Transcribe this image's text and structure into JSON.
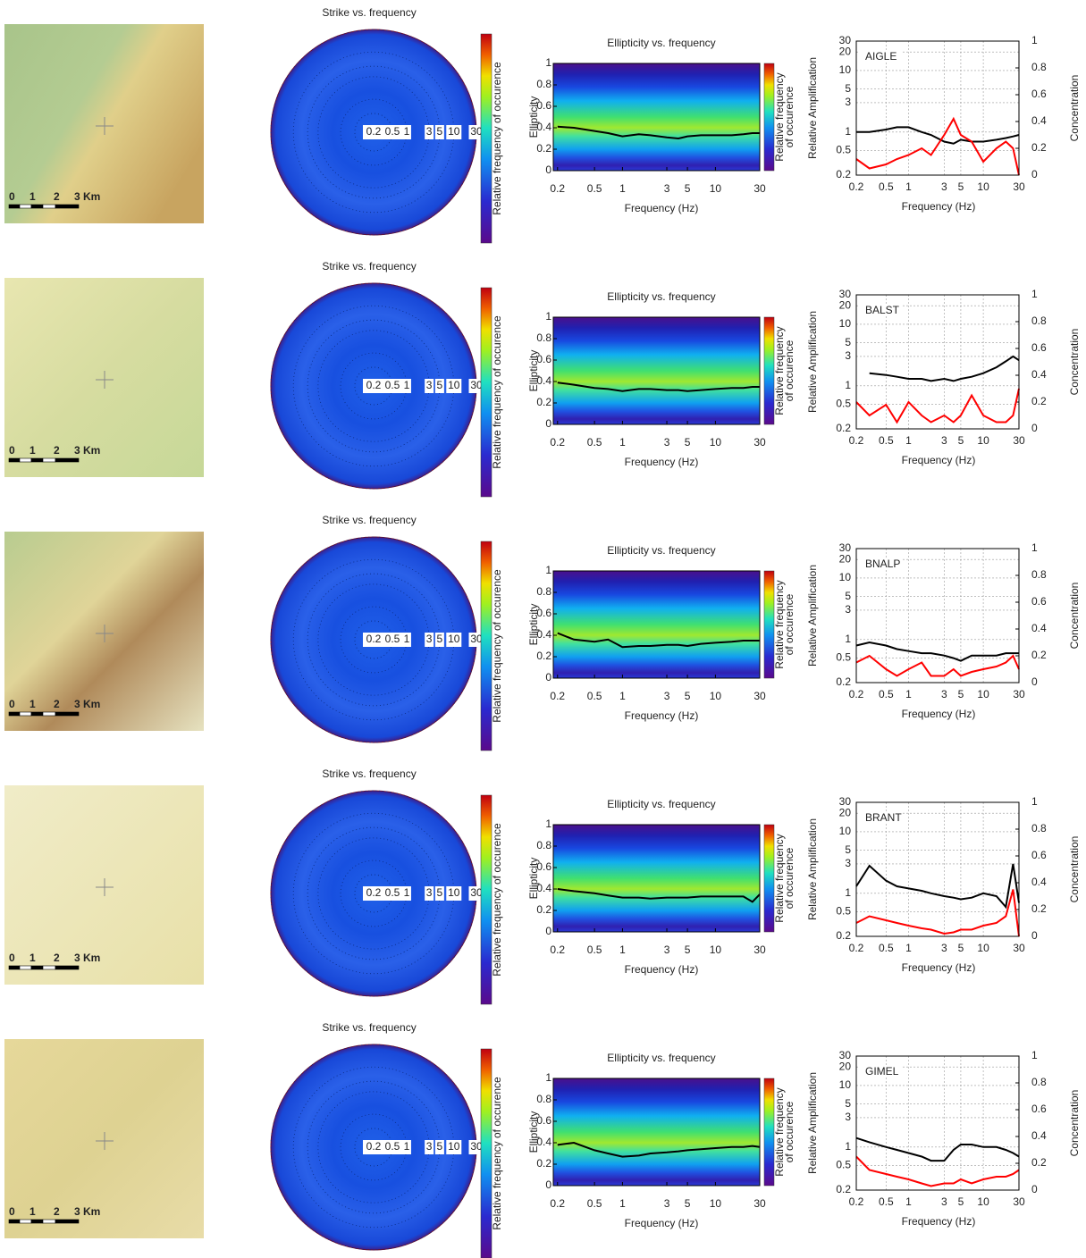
{
  "maps": [
    {
      "scale_labels": [
        "0",
        "1",
        "2",
        "3 Km"
      ]
    },
    {
      "scale_labels": [
        "0",
        "1",
        "2",
        "3 Km"
      ]
    },
    {
      "scale_labels": [
        "0",
        "1",
        "2",
        "3 Km"
      ]
    },
    {
      "scale_labels": [
        "0",
        "1",
        "2",
        "3 Km"
      ]
    },
    {
      "scale_labels": [
        "0",
        "1",
        "2",
        "3 Km"
      ]
    }
  ],
  "chart_data": [
    {
      "type": "polar",
      "title": "Strike vs. frequency",
      "rlim": [
        0.2,
        30
      ],
      "rticks": [
        0.2,
        0.5,
        1,
        3,
        5,
        10,
        30
      ],
      "colorbar_label": "Relative frequency of occurence"
    },
    {
      "type": "heatmap",
      "title": "Ellipticity vs. frequency",
      "x_label": "Frequency (Hz)",
      "y_label": "Ellipticity",
      "colorbar_label": [
        "Relative frequency",
        "of occurence"
      ],
      "xlog": true,
      "xlim": [
        0.18,
        30
      ],
      "xticks": [
        0.2,
        0.5,
        1,
        3,
        5,
        10,
        30
      ],
      "ylim": [
        0,
        1
      ],
      "yticks": [
        0,
        0.2,
        0.4,
        0.6,
        0.8,
        1
      ],
      "x": [
        0.2,
        0.3,
        0.5,
        0.7,
        1,
        1.5,
        2,
        3,
        4,
        5,
        7,
        10,
        15,
        20,
        25,
        30
      ],
      "series": [
        {
          "color": "#000000",
          "values": [
            0.41,
            0.4,
            0.37,
            0.35,
            0.32,
            0.34,
            0.33,
            0.31,
            0.3,
            0.32,
            0.33,
            0.33,
            0.33,
            0.34,
            0.35,
            0.35
          ]
        }
      ]
    },
    {
      "type": "line",
      "annotation": "AIGLE",
      "x_label": "Frequency (Hz)",
      "y_label": "Relative Amplification",
      "y2_label": "Concentration",
      "xlog": true,
      "ylog": true,
      "grid": true,
      "xlim": [
        0.2,
        30
      ],
      "xticks": [
        0.2,
        0.5,
        1,
        3,
        5,
        10,
        30
      ],
      "ylim": [
        0.2,
        30
      ],
      "yticks": [
        0.2,
        0.5,
        1,
        3,
        5,
        10,
        20,
        30
      ],
      "y2lim": [
        0,
        1
      ],
      "y2ticks": [
        0,
        0.2,
        0.4,
        0.6,
        0.8,
        1
      ],
      "x": [
        0.2,
        0.3,
        0.5,
        0.7,
        1,
        1.5,
        2,
        3,
        4,
        5,
        7,
        10,
        15,
        20,
        25,
        30
      ],
      "series": [
        {
          "color": "#000000",
          "values": [
            1.0,
            1.0,
            1.1,
            1.2,
            1.2,
            1.0,
            0.9,
            0.7,
            0.65,
            0.75,
            0.7,
            0.7,
            0.75,
            0.8,
            0.85,
            0.9
          ]
        },
        {
          "color": "#ff0000",
          "axis": "y2",
          "values": [
            0.12,
            0.05,
            0.08,
            0.12,
            0.15,
            0.2,
            0.15,
            0.3,
            0.42,
            0.3,
            0.25,
            0.1,
            0.2,
            0.25,
            0.2,
            0
          ]
        }
      ]
    },
    {
      "type": "polar",
      "title": "Strike vs. frequency",
      "rlim": [
        0.2,
        30
      ],
      "rticks": [
        0.2,
        0.5,
        1,
        3,
        5,
        10,
        30
      ],
      "colorbar_label": "Relative frequency of occurence"
    },
    {
      "type": "heatmap",
      "title": "Ellipticity vs. frequency",
      "x_label": "Frequency (Hz)",
      "y_label": "Ellipticity",
      "colorbar_label": [
        "Relative frequency",
        "of occurence"
      ],
      "xlog": true,
      "xlim": [
        0.18,
        30
      ],
      "xticks": [
        0.2,
        0.5,
        1,
        3,
        5,
        10,
        30
      ],
      "ylim": [
        0,
        1
      ],
      "yticks": [
        0,
        0.2,
        0.4,
        0.6,
        0.8,
        1
      ],
      "x": [
        0.2,
        0.3,
        0.5,
        0.7,
        1,
        1.5,
        2,
        3,
        4,
        5,
        7,
        10,
        15,
        20,
        25,
        30
      ],
      "series": [
        {
          "color": "#000000",
          "values": [
            0.39,
            0.37,
            0.34,
            0.33,
            0.31,
            0.33,
            0.33,
            0.32,
            0.32,
            0.31,
            0.32,
            0.33,
            0.34,
            0.34,
            0.35,
            0.35
          ]
        }
      ]
    },
    {
      "type": "line",
      "annotation": "BALST",
      "x_label": "Frequency (Hz)",
      "y_label": "Relative Amplification",
      "y2_label": "Concentration",
      "xlog": true,
      "ylog": true,
      "grid": true,
      "xlim": [
        0.2,
        30
      ],
      "xticks": [
        0.2,
        0.5,
        1,
        3,
        5,
        10,
        30
      ],
      "ylim": [
        0.2,
        30
      ],
      "yticks": [
        0.2,
        0.5,
        1,
        3,
        5,
        10,
        20,
        30
      ],
      "y2lim": [
        0,
        1
      ],
      "y2ticks": [
        0,
        0.2,
        0.4,
        0.6,
        0.8,
        1
      ],
      "x": [
        0.2,
        0.3,
        0.5,
        0.7,
        1,
        1.5,
        2,
        3,
        4,
        5,
        7,
        10,
        15,
        20,
        25,
        30
      ],
      "series": [
        {
          "color": "#000000",
          "values": [
            null,
            1.6,
            1.5,
            1.4,
            1.3,
            1.3,
            1.2,
            1.3,
            1.2,
            1.3,
            1.4,
            1.6,
            2.0,
            2.5,
            3.0,
            2.6
          ]
        },
        {
          "color": "#ff0000",
          "axis": "y2",
          "values": [
            0.2,
            0.1,
            0.18,
            0.05,
            0.2,
            0.1,
            0.05,
            0.1,
            0.05,
            0.1,
            0.25,
            0.1,
            0.05,
            0.05,
            0.1,
            0.3
          ]
        }
      ]
    },
    {
      "type": "polar",
      "title": "Strike vs. frequency",
      "rlim": [
        0.2,
        30
      ],
      "rticks": [
        0.2,
        0.5,
        1,
        3,
        5,
        10,
        30
      ],
      "colorbar_label": "Relative frequency of occurence"
    },
    {
      "type": "heatmap",
      "title": "Ellipticity vs. frequency",
      "x_label": "Frequency (Hz)",
      "y_label": "Ellipticity",
      "colorbar_label": [
        "Relative frequency",
        "of occurence"
      ],
      "xlog": true,
      "xlim": [
        0.18,
        30
      ],
      "xticks": [
        0.2,
        0.5,
        1,
        3,
        5,
        10,
        30
      ],
      "ylim": [
        0,
        1
      ],
      "yticks": [
        0,
        0.2,
        0.4,
        0.6,
        0.8,
        1
      ],
      "x": [
        0.2,
        0.3,
        0.5,
        0.7,
        1,
        1.5,
        2,
        3,
        4,
        5,
        7,
        10,
        15,
        20,
        25,
        30
      ],
      "series": [
        {
          "color": "#000000",
          "values": [
            0.42,
            0.36,
            0.34,
            0.36,
            0.29,
            0.3,
            0.3,
            0.31,
            0.31,
            0.3,
            0.32,
            0.33,
            0.34,
            0.35,
            0.35,
            0.35
          ]
        }
      ]
    },
    {
      "type": "line",
      "annotation": "BNALP",
      "x_label": "Frequency (Hz)",
      "y_label": "Relative Amplification",
      "y2_label": "Concentration",
      "xlog": true,
      "ylog": true,
      "grid": true,
      "xlim": [
        0.2,
        30
      ],
      "xticks": [
        0.2,
        0.5,
        1,
        3,
        5,
        10,
        30
      ],
      "ylim": [
        0.2,
        30
      ],
      "yticks": [
        0.2,
        0.5,
        1,
        3,
        5,
        10,
        20,
        30
      ],
      "y2lim": [
        0,
        1
      ],
      "y2ticks": [
        0,
        0.2,
        0.4,
        0.6,
        0.8,
        1
      ],
      "x": [
        0.2,
        0.3,
        0.5,
        0.7,
        1,
        1.5,
        2,
        3,
        4,
        5,
        7,
        10,
        15,
        20,
        25,
        30
      ],
      "series": [
        {
          "color": "#000000",
          "values": [
            0.8,
            0.9,
            0.8,
            0.7,
            0.65,
            0.6,
            0.6,
            0.55,
            0.5,
            0.45,
            0.55,
            0.55,
            0.55,
            0.6,
            0.6,
            0.6
          ]
        },
        {
          "color": "#ff0000",
          "axis": "y2",
          "values": [
            0.15,
            0.2,
            0.1,
            0.05,
            0.1,
            0.15,
            0.05,
            0.05,
            0.1,
            0.05,
            0.08,
            0.1,
            0.12,
            0.15,
            0.2,
            0.1
          ]
        }
      ]
    },
    {
      "type": "polar",
      "title": "Strike vs. frequency",
      "rlim": [
        0.2,
        30
      ],
      "rticks": [
        0.2,
        0.5,
        1,
        3,
        5,
        10,
        30
      ],
      "colorbar_label": "Relative frequency of occurence"
    },
    {
      "type": "heatmap",
      "title": "Ellipticity vs. frequency",
      "x_label": "Frequency (Hz)",
      "y_label": "Ellipticity",
      "colorbar_label": [
        "Relative frequency",
        "of occurence"
      ],
      "xlog": true,
      "xlim": [
        0.18,
        30
      ],
      "xticks": [
        0.2,
        0.5,
        1,
        3,
        5,
        10,
        30
      ],
      "ylim": [
        0,
        1
      ],
      "yticks": [
        0,
        0.2,
        0.4,
        0.6,
        0.8,
        1
      ],
      "x": [
        0.2,
        0.3,
        0.5,
        0.7,
        1,
        1.5,
        2,
        3,
        4,
        5,
        7,
        10,
        15,
        20,
        25,
        30
      ],
      "series": [
        {
          "color": "#000000",
          "values": [
            0.4,
            0.38,
            0.36,
            0.34,
            0.32,
            0.32,
            0.31,
            0.32,
            0.32,
            0.32,
            0.33,
            0.33,
            0.33,
            0.33,
            0.28,
            0.35
          ]
        }
      ]
    },
    {
      "type": "line",
      "annotation": "BRANT",
      "x_label": "Frequency (Hz)",
      "y_label": "Relative Amplification",
      "y2_label": "Concentration",
      "xlog": true,
      "ylog": true,
      "grid": true,
      "xlim": [
        0.2,
        30
      ],
      "xticks": [
        0.2,
        0.5,
        1,
        3,
        5,
        10,
        30
      ],
      "ylim": [
        0.2,
        30
      ],
      "yticks": [
        0.2,
        0.5,
        1,
        3,
        5,
        10,
        20,
        30
      ],
      "y2lim": [
        0,
        1
      ],
      "y2ticks": [
        0,
        0.2,
        0.4,
        0.6,
        0.8,
        1
      ],
      "x": [
        0.2,
        0.3,
        0.5,
        0.7,
        1,
        1.5,
        2,
        3,
        4,
        5,
        7,
        10,
        15,
        20,
        25,
        30
      ],
      "series": [
        {
          "color": "#000000",
          "values": [
            1.3,
            2.8,
            1.6,
            1.3,
            1.2,
            1.1,
            1.0,
            0.9,
            0.85,
            0.8,
            0.85,
            1.0,
            0.9,
            0.6,
            3.0,
            0.7
          ]
        },
        {
          "color": "#ff0000",
          "axis": "y2",
          "values": [
            0.1,
            0.15,
            0.12,
            0.1,
            0.08,
            0.06,
            0.05,
            0.02,
            0.03,
            0.05,
            0.05,
            0.08,
            0.1,
            0.15,
            0.35,
            0
          ]
        }
      ]
    },
    {
      "type": "polar",
      "title": "Strike vs. frequency",
      "rlim": [
        0.2,
        30
      ],
      "rticks": [
        0.2,
        0.5,
        1,
        3,
        5,
        10,
        30
      ],
      "colorbar_label": "Relative frequency of occurence"
    },
    {
      "type": "heatmap",
      "title": "Ellipticity vs. frequency",
      "x_label": "Frequency (Hz)",
      "y_label": "Ellipticity",
      "colorbar_label": [
        "Relative frequency",
        "of occurence"
      ],
      "xlog": true,
      "xlim": [
        0.18,
        30
      ],
      "xticks": [
        0.2,
        0.5,
        1,
        3,
        5,
        10,
        30
      ],
      "ylim": [
        0,
        1
      ],
      "yticks": [
        0,
        0.2,
        0.4,
        0.6,
        0.8,
        1
      ],
      "x": [
        0.2,
        0.3,
        0.5,
        0.7,
        1,
        1.5,
        2,
        3,
        4,
        5,
        7,
        10,
        15,
        20,
        25,
        30
      ],
      "series": [
        {
          "color": "#000000",
          "values": [
            0.38,
            0.4,
            0.33,
            0.3,
            0.27,
            0.28,
            0.3,
            0.31,
            0.32,
            0.33,
            0.34,
            0.35,
            0.36,
            0.36,
            0.37,
            0.36
          ]
        }
      ]
    },
    {
      "type": "line",
      "annotation": "GIMEL",
      "x_label": "Frequency (Hz)",
      "y_label": "Relative Amplification",
      "y2_label": "Concentration",
      "xlog": true,
      "ylog": true,
      "grid": true,
      "xlim": [
        0.2,
        30
      ],
      "xticks": [
        0.2,
        0.5,
        1,
        3,
        5,
        10,
        30
      ],
      "ylim": [
        0.2,
        30
      ],
      "yticks": [
        0.2,
        0.5,
        1,
        3,
        5,
        10,
        20,
        30
      ],
      "y2lim": [
        0,
        1
      ],
      "y2ticks": [
        0,
        0.2,
        0.4,
        0.6,
        0.8,
        1
      ],
      "x": [
        0.2,
        0.3,
        0.5,
        0.7,
        1,
        1.5,
        2,
        3,
        4,
        5,
        7,
        10,
        15,
        20,
        25,
        30
      ],
      "series": [
        {
          "color": "#000000",
          "values": [
            1.4,
            1.2,
            1.0,
            0.9,
            0.8,
            0.7,
            0.6,
            0.6,
            0.9,
            1.1,
            1.1,
            1.0,
            1.0,
            0.9,
            0.8,
            0.7
          ]
        },
        {
          "color": "#ff0000",
          "axis": "y2",
          "values": [
            0.25,
            0.15,
            0.12,
            0.1,
            0.08,
            0.05,
            0.03,
            0.05,
            0.05,
            0.08,
            0.05,
            0.08,
            0.1,
            0.1,
            0.12,
            0.15
          ]
        }
      ]
    }
  ]
}
